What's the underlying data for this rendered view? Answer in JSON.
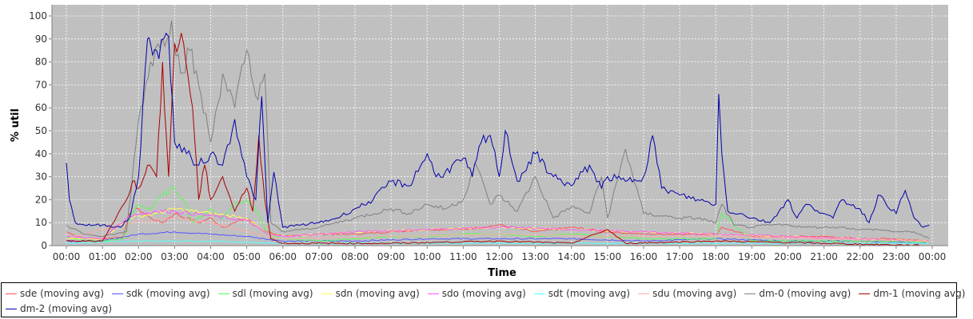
{
  "chart_data": {
    "type": "line",
    "title": "",
    "xlabel": "Time",
    "ylabel": "% util",
    "ylim": [
      0,
      100
    ],
    "yticks": [
      0,
      10,
      20,
      30,
      40,
      50,
      60,
      70,
      80,
      90,
      100
    ],
    "xlim": [
      "00:00",
      "24:00"
    ],
    "xtick_labels": [
      "00:00",
      "01:00",
      "02:00",
      "03:00",
      "04:00",
      "05:00",
      "06:00",
      "07:00",
      "08:00",
      "09:00",
      "10:00",
      "11:00",
      "12:00",
      "13:00",
      "14:00",
      "15:00",
      "16:00",
      "17:00",
      "18:00",
      "19:00",
      "20:00",
      "21:00",
      "22:00",
      "23:00",
      "00:00"
    ],
    "grid": true,
    "legend_position": "bottom",
    "background_color": "#c0c0c0",
    "series": [
      {
        "name": "sde (moving avg)",
        "color": "#ff5555",
        "x": [
          "00:00",
          "00:30",
          "01:00",
          "01:35",
          "01:45",
          "02:00",
          "02:20",
          "02:40",
          "03:00",
          "03:20",
          "03:40",
          "04:00",
          "04:20",
          "04:40",
          "05:00",
          "05:20",
          "05:35",
          "06:00",
          "07:00",
          "08:00",
          "09:00",
          "10:00",
          "11:00",
          "12:00",
          "13:00",
          "14:00",
          "15:00",
          "16:00",
          "17:00",
          "18:00",
          "18:10",
          "19:00",
          "20:00",
          "21:00",
          "22:00",
          "23:00",
          "23:55"
        ],
        "y": [
          6,
          3,
          3,
          4,
          14,
          16,
          12,
          10,
          14,
          12,
          10,
          12,
          8,
          10,
          12,
          8,
          6,
          4,
          5,
          5,
          6,
          7,
          7,
          9,
          6,
          8,
          6,
          5,
          5,
          5,
          8,
          4,
          4,
          4,
          3,
          3,
          2
        ]
      },
      {
        "name": "sdk (moving avg)",
        "color": "#5555ff",
        "x": [
          "00:00",
          "01:00",
          "02:00",
          "03:00",
          "04:00",
          "05:00",
          "06:00",
          "08:00",
          "10:00",
          "12:00",
          "14:00",
          "16:00",
          "18:00",
          "20:00",
          "22:00",
          "23:55"
        ],
        "y": [
          2,
          2,
          5,
          6,
          5,
          4,
          2,
          2,
          3,
          3,
          3,
          2,
          3,
          2,
          2,
          1
        ]
      },
      {
        "name": "sdl (moving avg)",
        "color": "#55ff55",
        "x": [
          "00:00",
          "00:30",
          "01:00",
          "01:35",
          "01:45",
          "02:00",
          "02:20",
          "02:40",
          "03:00",
          "03:15",
          "03:30",
          "04:00",
          "04:20",
          "04:40",
          "05:00",
          "05:20",
          "05:35",
          "06:00",
          "07:00",
          "08:00",
          "09:00",
          "10:00",
          "11:00",
          "12:00",
          "13:00",
          "14:00",
          "15:00",
          "16:00",
          "17:00",
          "18:00",
          "18:10",
          "19:00",
          "20:00",
          "21:00",
          "22:00",
          "23:00",
          "23:55"
        ],
        "y": [
          4,
          2,
          2,
          3,
          12,
          18,
          16,
          22,
          25,
          20,
          10,
          16,
          12,
          18,
          20,
          14,
          5,
          3,
          2,
          3,
          4,
          4,
          5,
          5,
          4,
          5,
          4,
          3,
          3,
          3,
          14,
          2,
          2,
          2,
          2,
          2,
          1
        ]
      },
      {
        "name": "sdn (moving avg)",
        "color": "#ffff55",
        "x": [
          "00:00",
          "01:00",
          "01:45",
          "02:30",
          "03:00",
          "04:00",
          "05:00",
          "05:35",
          "06:00",
          "08:00",
          "10:00",
          "12:00",
          "14:00",
          "16:00",
          "18:00",
          "20:00",
          "22:00",
          "23:55"
        ],
        "y": [
          3,
          3,
          12,
          14,
          16,
          14,
          12,
          5,
          4,
          6,
          7,
          8,
          7,
          6,
          5,
          4,
          3,
          2
        ]
      },
      {
        "name": "sdo (moving avg)",
        "color": "#ff55ff",
        "x": [
          "00:00",
          "01:00",
          "01:45",
          "02:30",
          "03:00",
          "04:00",
          "05:00",
          "05:35",
          "06:00",
          "08:00",
          "10:00",
          "12:00",
          "14:00",
          "16:00",
          "18:00",
          "20:00",
          "22:00",
          "23:55"
        ],
        "y": [
          4,
          3,
          13,
          15,
          15,
          13,
          11,
          5,
          4,
          6,
          7,
          8,
          7,
          6,
          5,
          4,
          3,
          2
        ]
      },
      {
        "name": "sdt (moving avg)",
        "color": "#55ffff",
        "x": [
          "00:00",
          "02:00",
          "04:00",
          "06:00",
          "12:00",
          "18:00",
          "23:55"
        ],
        "y": [
          1,
          2,
          2,
          1,
          1,
          1,
          1
        ]
      },
      {
        "name": "sdu (moving avg)",
        "color": "#ffaaaa",
        "x": [
          "00:00",
          "01:45",
          "03:00",
          "04:00",
          "05:35",
          "06:00",
          "09:00",
          "12:00",
          "15:00",
          "18:00",
          "21:00",
          "23:55"
        ],
        "y": [
          3,
          10,
          12,
          10,
          4,
          3,
          4,
          5,
          4,
          4,
          3,
          2
        ]
      },
      {
        "name": "dm-0 (moving avg)",
        "color": "#808080",
        "x": [
          "00:00",
          "00:30",
          "01:00",
          "01:40",
          "02:00",
          "02:20",
          "02:40",
          "02:55",
          "03:10",
          "03:25",
          "03:40",
          "04:00",
          "04:20",
          "04:40",
          "05:00",
          "05:15",
          "05:30",
          "05:40",
          "06:00",
          "07:00",
          "08:00",
          "09:00",
          "09:30",
          "10:00",
          "10:30",
          "11:00",
          "11:20",
          "11:45",
          "12:00",
          "12:30",
          "13:00",
          "13:30",
          "14:00",
          "14:30",
          "14:50",
          "15:00",
          "15:30",
          "16:00",
          "16:30",
          "17:00",
          "17:30",
          "18:00",
          "18:10",
          "18:30",
          "19:00",
          "19:30",
          "20:00",
          "20:30",
          "21:00",
          "21:30",
          "22:00",
          "22:30",
          "23:00",
          "23:30",
          "23:55"
        ],
        "y": [
          9,
          5,
          4,
          6,
          55,
          80,
          90,
          98,
          75,
          85,
          70,
          45,
          75,
          60,
          85,
          65,
          75,
          10,
          6,
          8,
          12,
          16,
          14,
          18,
          16,
          20,
          36,
          18,
          22,
          15,
          30,
          12,
          17,
          14,
          30,
          12,
          42,
          14,
          13,
          12,
          12,
          10,
          18,
          9,
          8,
          9,
          9,
          8,
          8,
          8,
          7,
          7,
          6,
          6,
          3
        ]
      },
      {
        "name": "dm-1 (moving avg)",
        "color": "#aa0000",
        "x": [
          "00:00",
          "01:00",
          "01:40",
          "01:50",
          "02:00",
          "02:15",
          "02:30",
          "02:40",
          "02:50",
          "03:00",
          "03:15",
          "03:30",
          "03:40",
          "03:50",
          "04:00",
          "04:20",
          "04:40",
          "05:00",
          "05:10",
          "05:20",
          "05:30",
          "05:40",
          "06:00",
          "09:00",
          "12:00",
          "14:00",
          "15:00",
          "15:30",
          "18:00",
          "21:00",
          "23:55"
        ],
        "y": [
          2,
          2,
          20,
          28,
          25,
          35,
          30,
          80,
          30,
          88,
          88,
          60,
          20,
          35,
          20,
          30,
          15,
          25,
          15,
          48,
          20,
          3,
          1,
          1,
          2,
          1,
          7,
          1,
          2,
          1,
          0
        ]
      },
      {
        "name": "dm-2 (moving avg)",
        "color": "#0000aa",
        "x": [
          "00:00",
          "00:05",
          "00:15",
          "00:30",
          "01:00",
          "01:30",
          "01:45",
          "02:00",
          "02:15",
          "02:20",
          "02:30",
          "02:50",
          "03:00",
          "03:20",
          "03:40",
          "04:00",
          "04:20",
          "04:40",
          "05:00",
          "05:15",
          "05:25",
          "05:35",
          "05:45",
          "06:00",
          "06:30",
          "07:00",
          "07:30",
          "08:00",
          "08:30",
          "09:00",
          "09:30",
          "10:00",
          "10:15",
          "10:30",
          "11:00",
          "11:15",
          "11:30",
          "11:45",
          "12:00",
          "12:10",
          "12:30",
          "13:00",
          "13:30",
          "14:00",
          "14:30",
          "14:50",
          "15:00",
          "15:30",
          "16:00",
          "16:15",
          "16:30",
          "17:00",
          "17:30",
          "18:00",
          "18:05",
          "18:10",
          "18:20",
          "18:40",
          "19:00",
          "19:30",
          "20:00",
          "20:15",
          "20:30",
          "21:00",
          "21:15",
          "21:30",
          "22:00",
          "22:15",
          "22:30",
          "23:00",
          "23:15",
          "23:30",
          "23:45",
          "23:55"
        ],
        "y": [
          36,
          20,
          10,
          9,
          9,
          8,
          12,
          30,
          90,
          88,
          85,
          91,
          45,
          40,
          35,
          40,
          35,
          55,
          30,
          20,
          65,
          10,
          32,
          8,
          9,
          10,
          12,
          16,
          20,
          28,
          26,
          40,
          30,
          32,
          38,
          30,
          45,
          48,
          30,
          50,
          28,
          40,
          30,
          26,
          35,
          25,
          30,
          28,
          30,
          48,
          25,
          22,
          20,
          18,
          66,
          40,
          15,
          14,
          12,
          10,
          20,
          12,
          18,
          14,
          12,
          20,
          16,
          10,
          22,
          14,
          24,
          12,
          8,
          9
        ]
      }
    ]
  }
}
